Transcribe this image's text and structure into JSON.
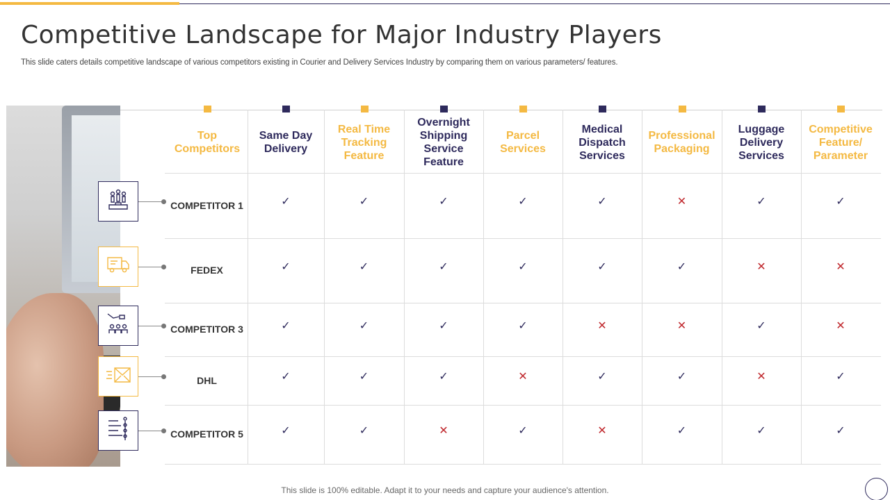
{
  "slide": {
    "title": "Competitive Landscape for Major Industry Players",
    "subtitle": "This slide caters details competitive landscape of various competitors existing in Courier and Delivery Services Industry by comparing them on various parameters/ features.",
    "footer": "This slide is 100% editable. Adapt it to your needs and capture your audience's attention."
  },
  "colors": {
    "gold": "#f4b942",
    "navy": "#2e2a5c",
    "cross": "#c0282d"
  },
  "table": {
    "headers": [
      {
        "label": "Top Competitors",
        "color": "gold"
      },
      {
        "label": "Same Day Delivery",
        "color": "navy"
      },
      {
        "label": "Real Time Tracking Feature",
        "color": "gold"
      },
      {
        "label": "Overnight Shipping Service Feature",
        "color": "navy"
      },
      {
        "label": "Parcel Services",
        "color": "gold"
      },
      {
        "label": "Medical Dispatch Services",
        "color": "navy"
      },
      {
        "label": "Professional Packaging",
        "color": "gold"
      },
      {
        "label": "Luggage Delivery Services",
        "color": "navy"
      },
      {
        "label": "Competitive Feature/ Parameter",
        "color": "gold"
      }
    ],
    "rows": [
      {
        "label": "COMPETITOR 1",
        "icon": "podium-people-icon",
        "values": [
          true,
          true,
          true,
          true,
          true,
          false,
          true,
          true
        ]
      },
      {
        "label": "FEDEX",
        "icon": "delivery-truck-icon",
        "values": [
          true,
          true,
          true,
          true,
          true,
          true,
          false,
          false
        ]
      },
      {
        "label": "COMPETITOR 3",
        "icon": "hand-money-people-icon",
        "values": [
          true,
          true,
          true,
          true,
          false,
          false,
          true,
          false
        ]
      },
      {
        "label": "DHL",
        "icon": "envelope-speed-icon",
        "values": [
          true,
          true,
          true,
          false,
          true,
          true,
          false,
          true
        ]
      },
      {
        "label": "COMPETITOR 5",
        "icon": "hierarchy-list-icon",
        "values": [
          true,
          true,
          false,
          true,
          false,
          true,
          true,
          true
        ]
      }
    ],
    "check_glyph": "✓",
    "cross_glyph": "✕"
  }
}
